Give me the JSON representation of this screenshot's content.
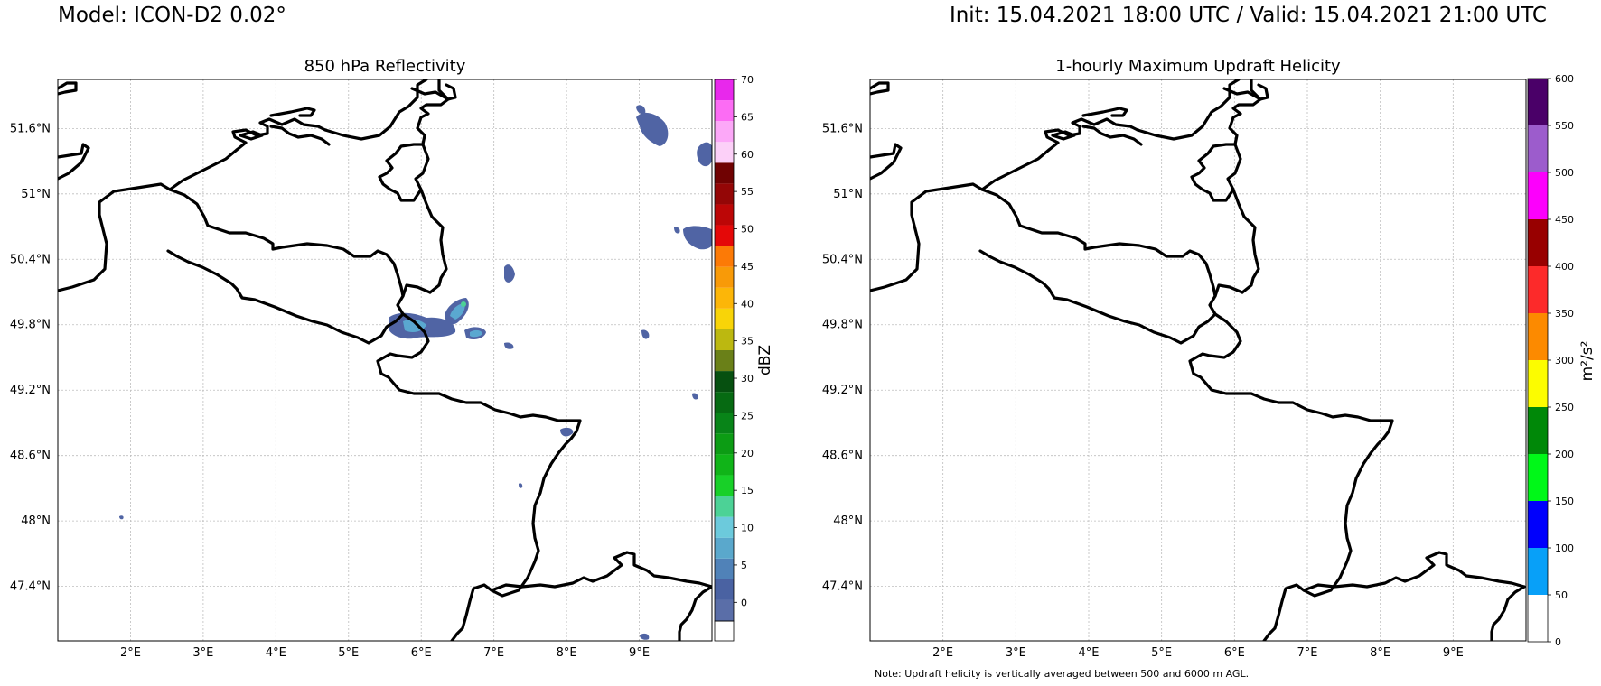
{
  "header": {
    "model": "Model: ICON-D2 0.02°",
    "time": "Init: 15.04.2021 18:00 UTC / Valid: 15.04.2021 21:00 UTC"
  },
  "left_panel": {
    "title": "850 hPa Reflectivity",
    "colorbar_label": "dBZ",
    "colorbar_ticks": [
      "0",
      "5",
      "10",
      "15",
      "20",
      "25",
      "30",
      "35",
      "40",
      "45",
      "50",
      "55",
      "60",
      "65",
      "70"
    ],
    "colorbar_colors": [
      "#5a6ea8",
      "#4a62a2",
      "#5082b8",
      "#5aa8cc",
      "#6ccadc",
      "#4cd296",
      "#18d028",
      "#10b418",
      "#0c9c14",
      "#088418",
      "#066a12",
      "#065010",
      "#6a8018",
      "#bcb810",
      "#f8d408",
      "#fcb608",
      "#f89a08",
      "#fc7a06",
      "#e40808",
      "#bc0606",
      "#940606",
      "#700202",
      "#fcd0f8",
      "#fca8f8",
      "#fc6cf4",
      "#e828ec"
    ],
    "lat_labels": [
      "51.6°N",
      "51°N",
      "50.4°N",
      "49.8°N",
      "49.2°N",
      "48.6°N",
      "48°N",
      "47.4°N"
    ],
    "lon_labels": [
      "2°E",
      "3°E",
      "4°E",
      "5°E",
      "6°E",
      "7°E",
      "8°E",
      "9°E"
    ]
  },
  "right_panel": {
    "title": "1-hourly Maximum Updraft Helicity",
    "colorbar_label": "m²/s²",
    "colorbar_ticks": [
      "0",
      "50",
      "100",
      "150",
      "200",
      "250",
      "300",
      "350",
      "400",
      "450",
      "500",
      "550",
      "600"
    ],
    "colorbar_colors": [
      "#ffffff",
      "#08a0f8",
      "#0000fc",
      "#00f818",
      "#008808",
      "#fcfc00",
      "#fc8a00",
      "#fc2a2a",
      "#980000",
      "#fc00fc",
      "#9c5ccc",
      "#4a0068"
    ],
    "lat_labels": [
      "51.6°N",
      "51°N",
      "50.4°N",
      "49.8°N",
      "49.2°N",
      "48.6°N",
      "48°N",
      "47.4°N"
    ],
    "lon_labels": [
      "2°E",
      "3°E",
      "4°E",
      "5°E",
      "6°E",
      "7°E",
      "8°E",
      "9°E"
    ],
    "note": "Note: Updraft helicity is vertically averaged between 500 and 6000 m AGL."
  },
  "map_extent": {
    "lon": [
      1.0,
      10.0
    ],
    "lat": [
      46.9,
      52.05
    ]
  },
  "border_color": "#000000",
  "echo_colors": {
    "outer": "#5064a4",
    "mid": "#5aa8d0",
    "core": "#6ccadc",
    "peak": "#4cd296"
  }
}
